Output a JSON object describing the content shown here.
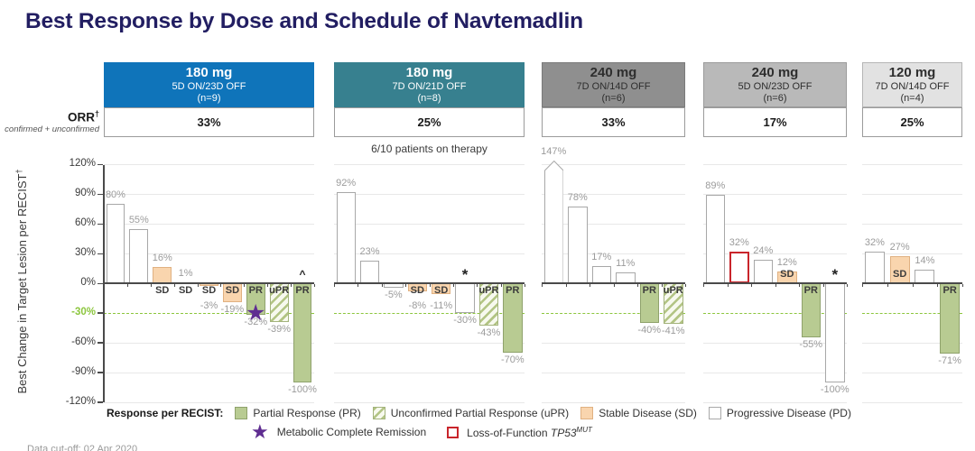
{
  "title": "Best Response by Dose and Schedule of Navtemadlin",
  "footer": "Data cut-off: 02 Apr 2020",
  "orr": {
    "label": "ORR",
    "dagger": "†",
    "sublabel": "confirmed + unconfirmed"
  },
  "chart_data": {
    "type": "bar",
    "subtype": "waterfall",
    "ylabel": "Best Change in Target Lesion per RECIST",
    "ylabel_sup": "†",
    "ylim": [
      -120,
      120
    ],
    "yticks": [
      120,
      90,
      60,
      30,
      0,
      -30,
      -60,
      -90,
      -120
    ],
    "ytick_suffix": "%",
    "grid": true,
    "reference_line": -30,
    "groups": [
      {
        "dose": "180 mg",
        "schedule": "5D ON/23D OFF",
        "n_label": "(n=9)",
        "orr": "33%",
        "header_bg": "#0f74ba",
        "header_fg": "#ffffff",
        "header_border": "none",
        "bars": [
          {
            "value": 80,
            "label": "80%",
            "category": "PD"
          },
          {
            "value": 55,
            "label": "55%",
            "category": "PD"
          },
          {
            "value": 16,
            "label": "16%",
            "category": "SD",
            "cat_label": "SD"
          },
          {
            "value": 1,
            "label": "1%",
            "category": "SD",
            "cat_label": "SD"
          },
          {
            "value": -3,
            "label": "-3%",
            "category": "SD",
            "cat_label": "SD"
          },
          {
            "value": -19,
            "label": "-19%",
            "category": "SD",
            "cat_label": "SD"
          },
          {
            "value": -32,
            "label": "-32%",
            "category": "PR",
            "cat_label": "PR",
            "marker": "star"
          },
          {
            "value": -39,
            "label": "-39%",
            "category": "uPR",
            "cat_label": "uPR"
          },
          {
            "value": -100,
            "label": "-100%",
            "category": "PR",
            "cat_label": "PR",
            "marker": "caret"
          }
        ]
      },
      {
        "dose": "180 mg",
        "schedule": "7D ON/21D OFF",
        "n_label": "(n=8)",
        "orr": "25%",
        "note": "6/10 patients on therapy",
        "header_bg": "#37808f",
        "header_fg": "#ffffff",
        "header_border": "none",
        "bars": [
          {
            "value": 92,
            "label": "92%",
            "category": "PD"
          },
          {
            "value": 23,
            "label": "23%",
            "category": "PD"
          },
          {
            "value": -5,
            "label": "-5%",
            "category": "PD"
          },
          {
            "value": -8,
            "label": "-8%",
            "category": "SD",
            "cat_label": "SD"
          },
          {
            "value": -11,
            "label": "-11%",
            "category": "SD",
            "cat_label": "SD"
          },
          {
            "value": -30,
            "label": "-30%",
            "category": "PD",
            "marker": "asterisk"
          },
          {
            "value": -43,
            "label": "-43%",
            "category": "uPR",
            "cat_label": "uPR"
          },
          {
            "value": -70,
            "label": "-70%",
            "category": "PR",
            "cat_label": "PR"
          }
        ]
      },
      {
        "dose": "240 mg",
        "schedule": "7D ON/14D OFF",
        "n_label": "(n=6)",
        "orr": "33%",
        "header_bg": "#8f8f8f",
        "header_fg": "#2e2e2e",
        "header_border": "#7a7a7a",
        "bars": [
          {
            "value": 147,
            "label": "147%",
            "category": "PD",
            "clipped": true
          },
          {
            "value": 78,
            "label": "78%",
            "category": "PD"
          },
          {
            "value": 17,
            "label": "17%",
            "category": "PD"
          },
          {
            "value": 11,
            "label": "11%",
            "category": "PD"
          },
          {
            "value": -40,
            "label": "-40%",
            "category": "PR",
            "cat_label": "PR"
          },
          {
            "value": -41,
            "label": "-41%",
            "category": "uPR",
            "cat_label": "uPR"
          }
        ]
      },
      {
        "dose": "240 mg",
        "schedule": "5D ON/23D OFF",
        "n_label": "(n=6)",
        "orr": "17%",
        "header_bg": "#b9b9b9",
        "header_fg": "#2e2e2e",
        "header_border": "#9b9b9b",
        "bars": [
          {
            "value": 89,
            "label": "89%",
            "category": "PD"
          },
          {
            "value": 32,
            "label": "32%",
            "category": "PD",
            "tp53_outline": true
          },
          {
            "value": 24,
            "label": "24%",
            "category": "PD"
          },
          {
            "value": 12,
            "label": "12%",
            "category": "SD",
            "cat_label": "SD",
            "cat_inside": true
          },
          {
            "value": -55,
            "label": "-55%",
            "category": "PR",
            "cat_label": "PR"
          },
          {
            "value": -100,
            "label": "-100%",
            "category": "PD",
            "marker": "asterisk"
          }
        ]
      },
      {
        "dose": "120 mg",
        "schedule": "7D ON/14D OFF",
        "n_label": "(n=4)",
        "orr": "25%",
        "header_bg": "#e2e2e2",
        "header_fg": "#2e2e2e",
        "header_border": "#b5b5b5",
        "bars": [
          {
            "value": 32,
            "label": "32%",
            "category": "PD"
          },
          {
            "value": 27,
            "label": "27%",
            "category": "SD",
            "cat_label": "SD",
            "cat_inside": true
          },
          {
            "value": 14,
            "label": "14%",
            "category": "PD"
          },
          {
            "value": -71,
            "label": "-71%",
            "category": "PR",
            "cat_label": "PR"
          }
        ]
      }
    ]
  },
  "legend": {
    "title": "Response per RECIST:",
    "row1": [
      {
        "swatch": "pr",
        "label": "Partial Response (PR)"
      },
      {
        "swatch": "upr",
        "label": "Unconfirmed Partial Response (uPR)"
      },
      {
        "swatch": "sd",
        "label": "Stable Disease (SD)"
      },
      {
        "swatch": "pd",
        "label": "Progressive Disease (PD)"
      }
    ],
    "star_label": "Metabolic Complete Remission",
    "tp53_prefix": "Loss-of-Function ",
    "tp53_gene": "TP53",
    "tp53_sup": "MUT"
  },
  "colors": {
    "title": "#221e62",
    "pr_fill": "#b8cb92",
    "pr_border": "#8fa26c",
    "upr_bg": "#f7f9ee",
    "upr_stripe": "#b2c483",
    "upr_border": "#a3b37c",
    "sd_fill": "#f9d5ae",
    "sd_border": "#e0b181",
    "pd_fill": "#ffffff",
    "pd_border": "#a8a8a8",
    "tp53_border": "#c9252b",
    "star": "#5f2d91",
    "ref_line": "#8cc63e",
    "axis": "#4a4a4a",
    "grid": "#e8e8e8",
    "value_label": "#9b9b9b",
    "cat_label": "#3c3c3c",
    "marker": "#222222"
  }
}
